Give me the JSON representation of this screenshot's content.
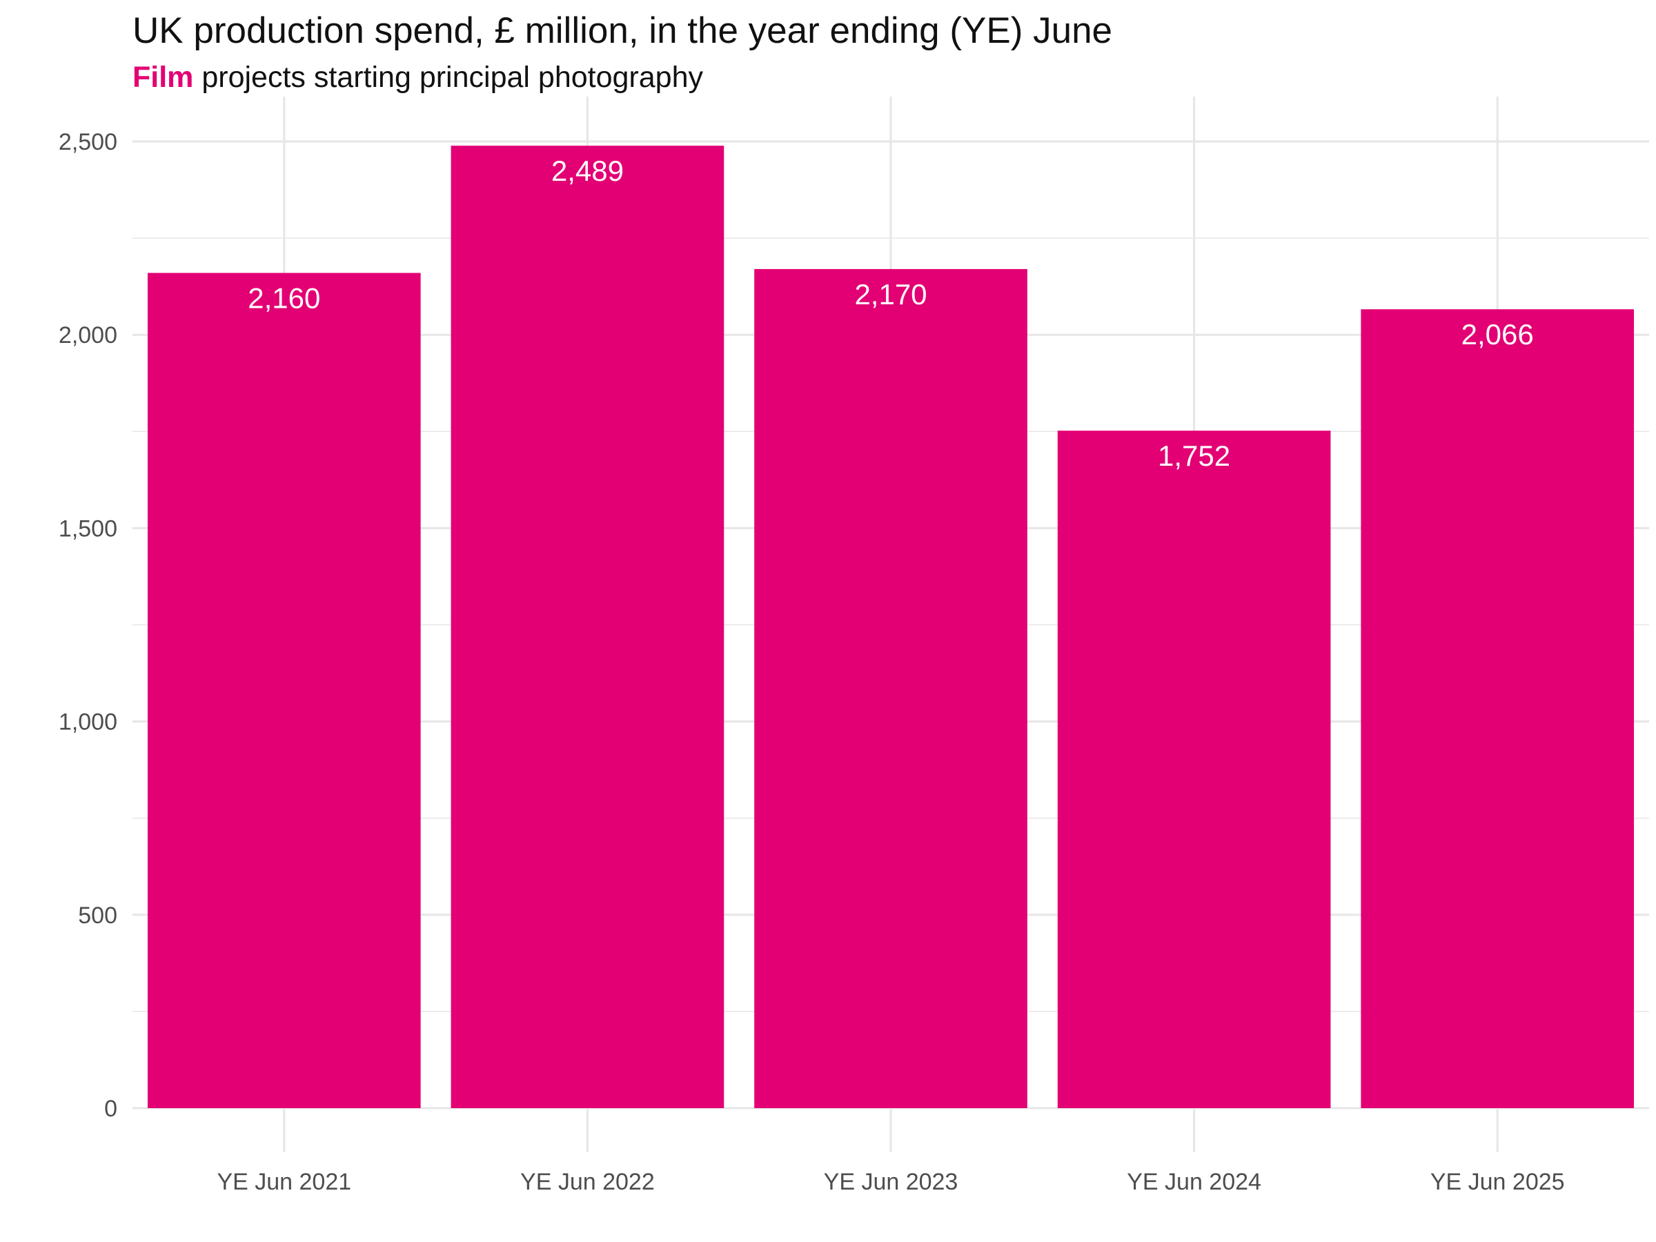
{
  "colors": {
    "bar": "#e30074",
    "grid": "#e6e6e6",
    "text": "#111111",
    "tick": "#4d4d4d",
    "label": "#ffffff"
  },
  "title": "UK production spend, £ million, in the year ending (YE) June",
  "subtitle": {
    "highlight": "Film",
    "rest": " projects starting principal photography"
  },
  "chart_data": {
    "type": "bar",
    "title": "UK production spend, £ million, in the year ending (YE) June",
    "subtitle": "Film projects starting principal photography",
    "xlabel": "",
    "ylabel": "",
    "categories": [
      "YE Jun 2021",
      "YE Jun 2022",
      "YE Jun 2023",
      "YE Jun 2024",
      "YE Jun 2025"
    ],
    "values": [
      2160,
      2489,
      2170,
      1752,
      2066
    ],
    "value_labels": [
      "2,160",
      "2,489",
      "2,170",
      "1,752",
      "2,066"
    ],
    "ylim": [
      0,
      2600
    ],
    "yticks": [
      0,
      500,
      1000,
      1500,
      2000,
      2500
    ],
    "ytick_labels": [
      "0",
      "500",
      "1,000",
      "1,500",
      "2,000",
      "2,500"
    ],
    "grid": true,
    "legend": "none"
  }
}
